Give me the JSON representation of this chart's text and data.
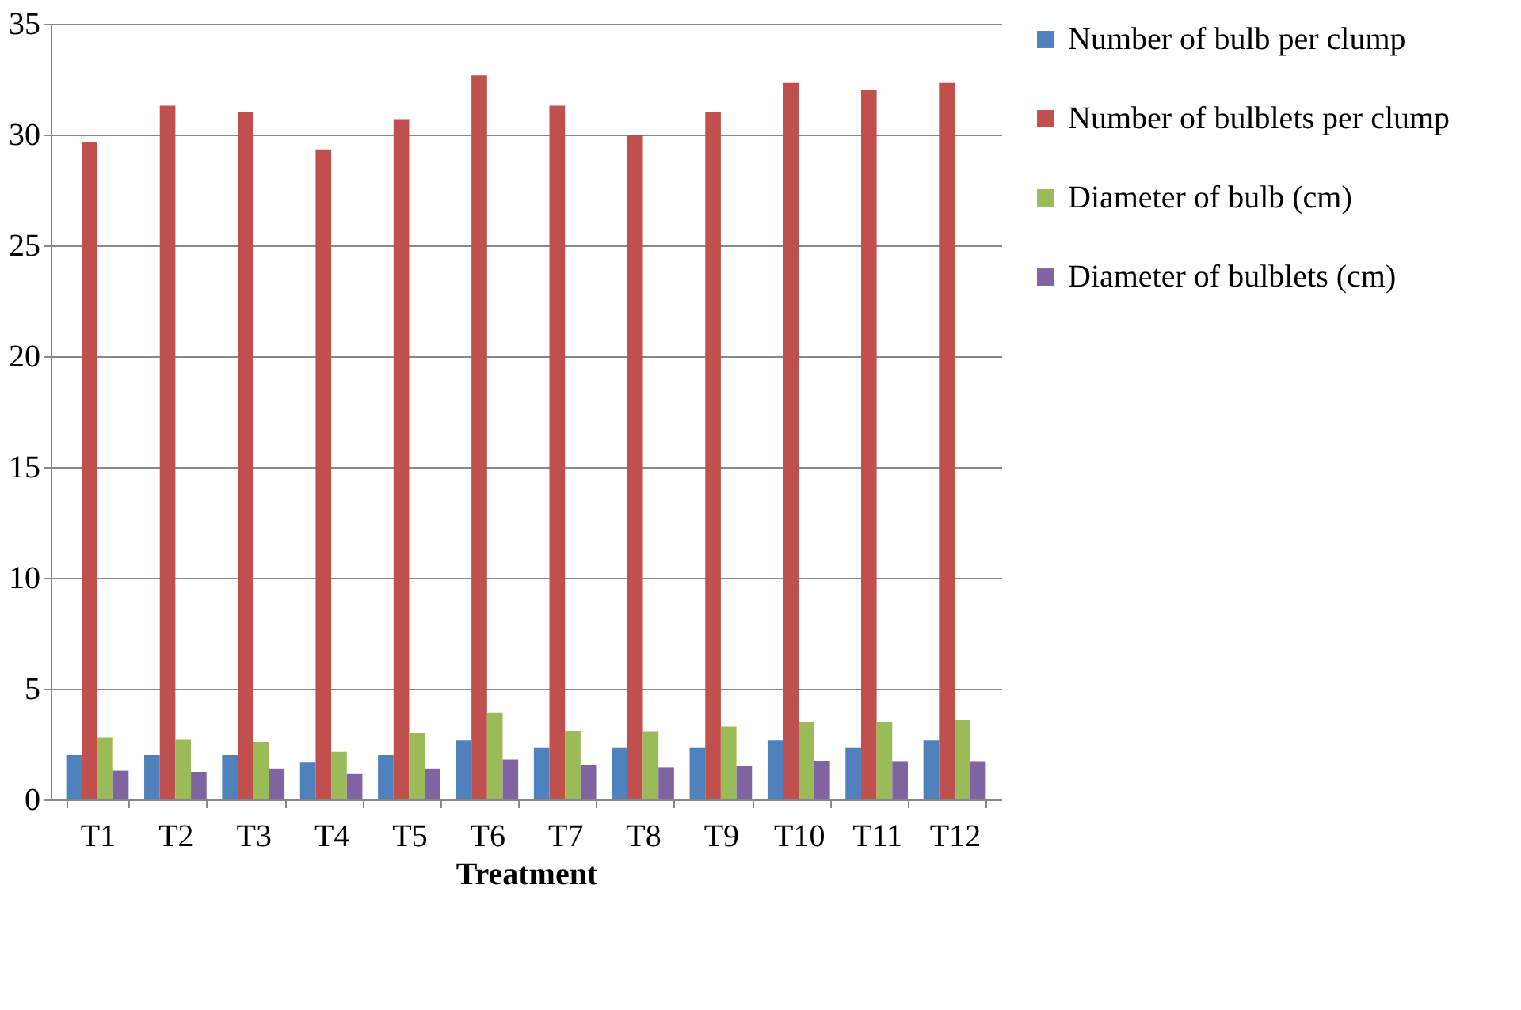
{
  "chart_data": {
    "type": "bar",
    "xlabel": "Treatment",
    "categories": [
      "T1",
      "T2",
      "T3",
      "T4",
      "T5",
      "T6",
      "T7",
      "T8",
      "T9",
      "T10",
      "T11",
      "T12"
    ],
    "series": [
      {
        "name": "Number of bulb per clump",
        "color": "#4f81bd",
        "values": [
          2.0,
          2.0,
          2.0,
          1.67,
          2.0,
          2.67,
          2.33,
          2.33,
          2.33,
          2.67,
          2.33,
          2.67
        ]
      },
      {
        "name": "Number of bulblets per clump",
        "color": "#c0504d",
        "values": [
          29.67,
          31.3,
          31.0,
          29.33,
          30.7,
          32.67,
          31.3,
          30.0,
          31.0,
          32.33,
          32.0,
          32.33
        ]
      },
      {
        "name": "Diameter of bulb (cm)",
        "color": "#9bbb59",
        "values": [
          2.8,
          2.7,
          2.6,
          2.15,
          3.0,
          3.9,
          3.1,
          3.05,
          3.3,
          3.5,
          3.5,
          3.6
        ]
      },
      {
        "name": "Diameter of bulblets (cm)",
        "color": "#8064a2",
        "values": [
          1.3,
          1.25,
          1.4,
          1.15,
          1.4,
          1.8,
          1.55,
          1.45,
          1.5,
          1.75,
          1.7,
          1.7
        ]
      }
    ],
    "ylim": [
      0,
      35
    ],
    "yticks": [
      0,
      5,
      10,
      15,
      20,
      25,
      30,
      35
    ],
    "grid": "y",
    "legend": "right"
  }
}
